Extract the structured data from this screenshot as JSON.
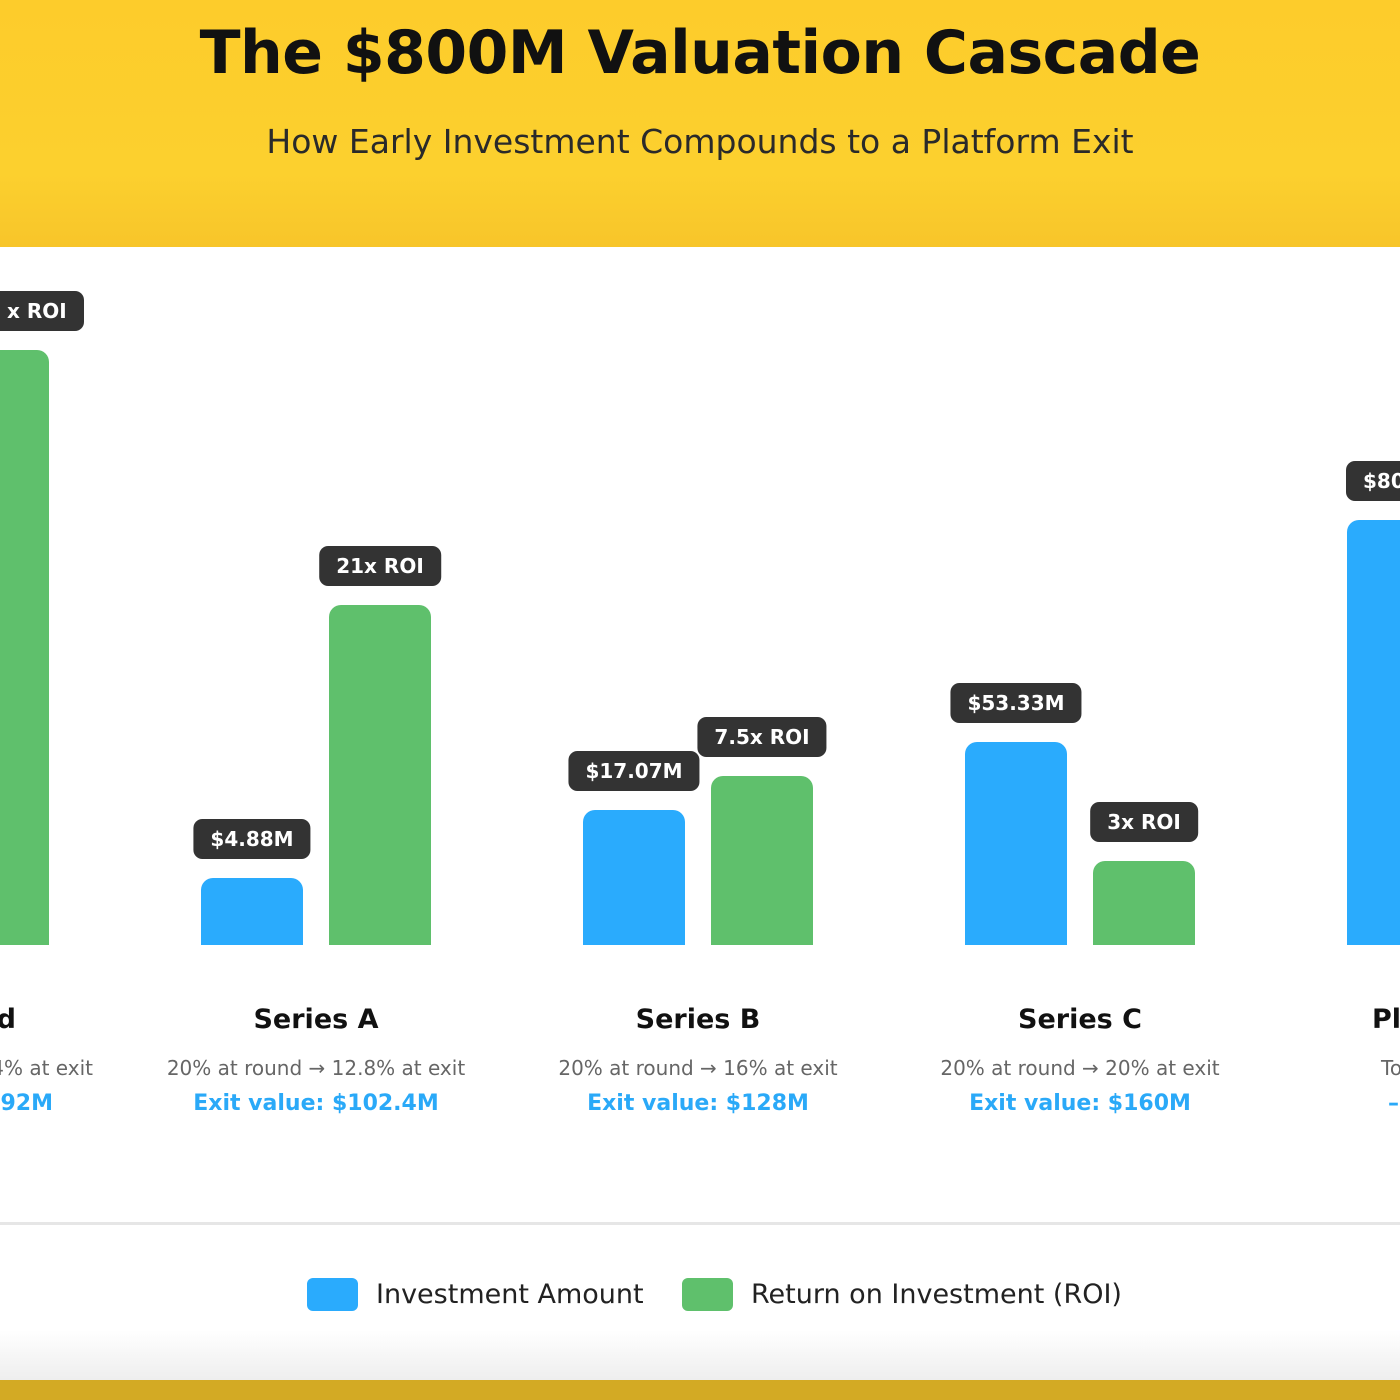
{
  "header": {
    "title": "The $800M Valuation Cascade",
    "subtitle": "How Early Investment Compounds to a Platform Exit"
  },
  "colors": {
    "investment": "#2AABFD",
    "roi": "#5FC06C",
    "header": "#FDCC2B",
    "label_bg": "#333333",
    "exit_text": "#2AA9F8"
  },
  "chart_data": {
    "type": "bar",
    "categories": [
      "d",
      "Series A",
      "Series B",
      "Series C",
      "Pl"
    ],
    "series": [
      {
        "name": "Investment Amount",
        "labels": [
          null,
          "$4.88M",
          "$17.07M",
          "$53.33M",
          "$80"
        ]
      },
      {
        "name": "Return on Investment (ROI)",
        "labels": [
          "x ROI",
          "21x ROI",
          "7.5x ROI",
          "3x ROI",
          null
        ]
      }
    ],
    "descriptions": [
      "4% at exit",
      "20% at round → 12.8% at exit",
      "20% at round → 16% at exit",
      "20% at round → 20% at exit",
      "To"
    ],
    "exit_values": [
      "92M",
      "Exit value: $102.4M",
      "Exit value: $128M",
      "Exit value: $160M",
      "–"
    ],
    "legend": [
      "Investment Amount",
      "Return on Investment (ROI)"
    ],
    "legend_position": "bottom"
  }
}
